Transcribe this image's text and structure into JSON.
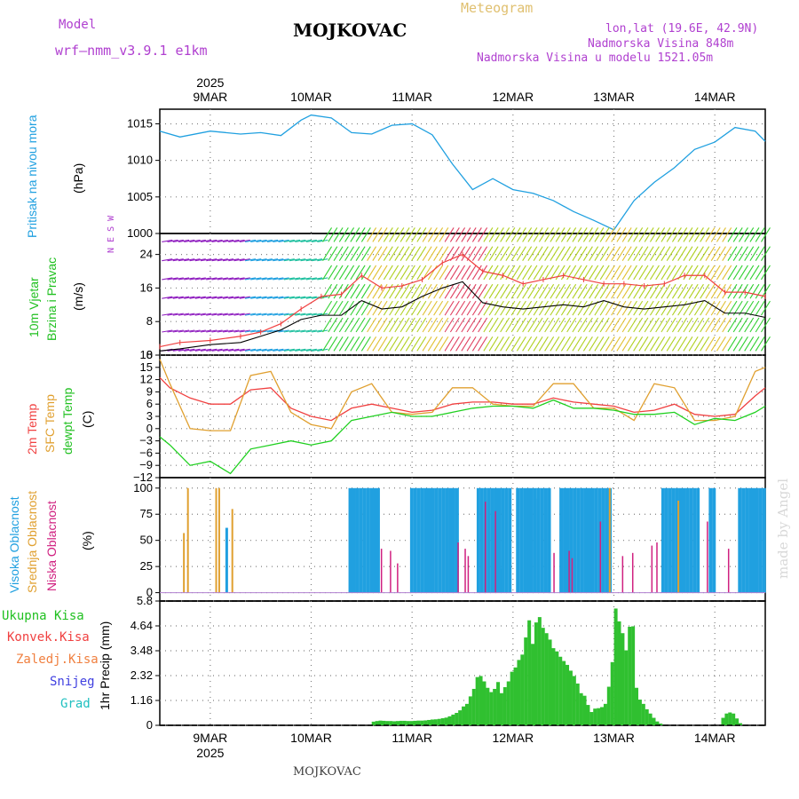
{
  "header": {
    "model_label": "Model",
    "model_name": "wrf—nmm_v3.9.1 e1km",
    "title": "MOJKOVAC",
    "meteogram": "Meteogram",
    "lonlat": "lon,lat (19.6E, 42.9N)",
    "altitude": "Nadmorska Visina 848m",
    "altitude_model": "Nadmorska Visina u modelu 1521.05m",
    "footer": "MOJKOVAC",
    "watermark": "made by Angel"
  },
  "colors": {
    "pressure": "#20a0e0",
    "wind_labels": "#20c020",
    "temp2m": "#f04040",
    "sfc": "#e0a030",
    "dewpt": "#20d020",
    "high_cloud": "#20a0e0",
    "mid_cloud": "#e0a030",
    "low_cloud": "#d02080",
    "precip": "#30c030",
    "grid": "#808080"
  },
  "time_axis": {
    "year": "2025",
    "days": [
      "9MAR",
      "10MAR",
      "11MAR",
      "12MAR",
      "13MAR",
      "14MAR"
    ]
  },
  "chart_data": [
    {
      "type": "line",
      "panel": "pressure",
      "ylabel": "Pritisak na nivou mora",
      "unit": "(hPa)",
      "ylim": [
        1000,
        1017
      ],
      "yticks": [
        "1015",
        "1010",
        "1005",
        "1000"
      ],
      "x_days": [
        8.5,
        8.7,
        9.0,
        9.3,
        9.5,
        9.7,
        9.9,
        10.0,
        10.2,
        10.4,
        10.6,
        10.8,
        11.0,
        11.2,
        11.4,
        11.6,
        11.8,
        12.0,
        12.2,
        12.4,
        12.6,
        12.8,
        13.0,
        13.2,
        13.4,
        13.6,
        13.8,
        14.0,
        14.2,
        14.4,
        14.5
      ],
      "values": [
        1014,
        1013.2,
        1014,
        1013.6,
        1013.8,
        1013.4,
        1015.5,
        1016.2,
        1015.8,
        1013.8,
        1013.6,
        1014.8,
        1015,
        1013.5,
        1009.5,
        1006,
        1007.5,
        1006,
        1005.5,
        1004.5,
        1003,
        1001.8,
        1000.5,
        1004.5,
        1007,
        1009,
        1011.5,
        1012.5,
        1014.5,
        1014,
        1012.6
      ],
      "grid": true
    },
    {
      "type": "line",
      "panel": "wind",
      "ylabel": "10m Vjetar Brzina i Pravac",
      "unit": "(m/s)",
      "ylim": [
        0,
        29
      ],
      "yticks": [
        "24",
        "16",
        "8",
        "0"
      ],
      "compass": "N E S W",
      "series": [
        {
          "x_days": [
            8.5,
            8.7,
            9.0,
            9.3,
            9.5,
            9.7,
            9.9,
            10.1,
            10.3,
            10.5,
            10.7,
            10.9,
            11.1,
            11.3,
            11.5,
            11.7,
            11.9,
            12.1,
            12.3,
            12.5,
            12.7,
            12.9,
            13.1,
            13.3,
            13.5,
            13.7,
            13.9,
            14.1,
            14.3,
            14.5
          ],
          "values": [
            1,
            1.5,
            2.5,
            3,
            4.5,
            6,
            8.5,
            9.5,
            9.5,
            13,
            11,
            11.5,
            14,
            16,
            17.5,
            12.5,
            11.5,
            11,
            11.5,
            12,
            11.5,
            13,
            11.5,
            11,
            11.5,
            12,
            13,
            10,
            10,
            9
          ]
        },
        {
          "x_days": [
            8.5,
            8.7,
            9.0,
            9.3,
            9.5,
            9.7,
            9.9,
            10.1,
            10.3,
            10.5,
            10.7,
            10.9,
            11.1,
            11.3,
            11.5,
            11.7,
            11.9,
            12.1,
            12.3,
            12.5,
            12.7,
            12.9,
            13.1,
            13.3,
            13.5,
            13.7,
            13.9,
            14.1,
            14.3,
            14.5
          ],
          "values": [
            2,
            3,
            3.5,
            4.5,
            5.5,
            7.5,
            11,
            14,
            14.5,
            19,
            16,
            16.5,
            18,
            22,
            24,
            20,
            19,
            17,
            18,
            19,
            18,
            17,
            17,
            16.5,
            17,
            19,
            19,
            15,
            15,
            14
          ]
        }
      ],
      "grid": true
    },
    {
      "type": "line",
      "panel": "temperature",
      "ylabel": "2m Temp / SFC Temp / dewpt Temp",
      "unit": "(C)",
      "ylim": [
        -12,
        18
      ],
      "yticks": [
        "18",
        "15",
        "12",
        "9",
        "6",
        "3",
        "0",
        "−3",
        "−6",
        "−9",
        "−12"
      ],
      "series": [
        {
          "name": "2m Temp",
          "x_days": [
            8.5,
            8.6,
            8.8,
            9.0,
            9.2,
            9.4,
            9.6,
            9.8,
            10.0,
            10.2,
            10.4,
            10.6,
            10.8,
            11.0,
            11.2,
            11.4,
            11.6,
            11.8,
            12.0,
            12.2,
            12.4,
            12.6,
            12.8,
            13.0,
            13.2,
            13.4,
            13.6,
            13.8,
            14.0,
            14.2,
            14.4,
            14.5
          ],
          "values": [
            12.5,
            10,
            7.5,
            6,
            6,
            9.5,
            10,
            5,
            3,
            2,
            5,
            6,
            5,
            4,
            4.5,
            6,
            6.5,
            6.5,
            6,
            6,
            7.5,
            6.5,
            6,
            5.5,
            4,
            4.5,
            6,
            3.5,
            3,
            3.5,
            8,
            10
          ]
        },
        {
          "name": "SFC Temp",
          "x_days": [
            8.5,
            8.6,
            8.8,
            9.0,
            9.2,
            9.4,
            9.6,
            9.8,
            10.0,
            10.2,
            10.4,
            10.6,
            10.8,
            11.0,
            11.2,
            11.4,
            11.6,
            11.8,
            12.0,
            12.2,
            12.4,
            12.6,
            12.8,
            13.0,
            13.2,
            13.4,
            13.6,
            13.8,
            14.0,
            14.2,
            14.4,
            14.5
          ],
          "values": [
            17,
            11,
            0,
            -0.5,
            -0.5,
            13,
            14,
            4,
            1,
            0,
            9,
            11,
            4,
            3.5,
            4,
            10,
            10,
            6,
            5.5,
            5.5,
            11,
            11,
            5,
            5,
            2,
            11,
            10,
            2,
            2,
            3,
            14,
            15
          ]
        },
        {
          "name": "dewpt Temp",
          "x_days": [
            8.5,
            8.6,
            8.8,
            9.0,
            9.2,
            9.4,
            9.6,
            9.8,
            10.0,
            10.2,
            10.4,
            10.6,
            10.8,
            11.0,
            11.2,
            11.4,
            11.6,
            11.8,
            12.0,
            12.2,
            12.4,
            12.6,
            12.8,
            13.0,
            13.2,
            13.4,
            13.6,
            13.8,
            14.0,
            14.2,
            14.4,
            14.5
          ],
          "values": [
            -2,
            -4,
            -9,
            -8,
            -11,
            -5,
            -4,
            -3,
            -4,
            -3,
            2,
            3,
            4,
            3,
            3,
            4,
            5,
            5.5,
            5.5,
            5,
            7,
            5,
            5,
            4.5,
            3.5,
            3.5,
            4,
            1,
            2.5,
            2,
            4,
            5.5
          ]
        }
      ],
      "grid": true
    },
    {
      "type": "bar",
      "panel": "cloud",
      "ylabel": "Visoka Oblacnost / Srednja Oblacnost / Niska Oblacnost",
      "unit": "(%)",
      "ylim": [
        0,
        100
      ],
      "yticks": [
        "100",
        "75",
        "50",
        "25",
        "0"
      ],
      "high_blocks_days": [
        [
          10.37,
          10.67
        ],
        [
          10.98,
          11.44
        ],
        [
          11.64,
          11.97
        ],
        [
          12.03,
          12.36
        ],
        [
          12.46,
          12.95
        ],
        [
          13.47,
          13.82
        ],
        [
          13.94,
          14.0
        ],
        [
          14.23,
          14.5
        ]
      ],
      "high_spikes": [
        {
          "x": 9.15,
          "v": 62
        },
        {
          "x": 12.21,
          "v": 90
        },
        {
          "x": 11.87,
          "v": 23
        }
      ],
      "mid_spikes": [
        {
          "x": 8.73,
          "v": 57
        },
        {
          "x": 8.77,
          "v": 100
        },
        {
          "x": 9.05,
          "v": 100
        },
        {
          "x": 9.08,
          "v": 100
        },
        {
          "x": 9.21,
          "v": 80
        },
        {
          "x": 12.95,
          "v": 100
        },
        {
          "x": 13.63,
          "v": 88
        }
      ],
      "low_spikes": [
        {
          "x": 10.69,
          "v": 42
        },
        {
          "x": 10.78,
          "v": 40
        },
        {
          "x": 10.85,
          "v": 28
        },
        {
          "x": 11.45,
          "v": 48
        },
        {
          "x": 11.52,
          "v": 42
        },
        {
          "x": 11.55,
          "v": 35
        },
        {
          "x": 11.72,
          "v": 87
        },
        {
          "x": 11.82,
          "v": 78
        },
        {
          "x": 12.4,
          "v": 38
        },
        {
          "x": 12.55,
          "v": 40
        },
        {
          "x": 12.58,
          "v": 33
        },
        {
          "x": 12.86,
          "v": 68
        },
        {
          "x": 13.08,
          "v": 35
        },
        {
          "x": 13.18,
          "v": 38
        },
        {
          "x": 13.37,
          "v": 45
        },
        {
          "x": 13.42,
          "v": 48
        },
        {
          "x": 13.92,
          "v": 68
        },
        {
          "x": 14.13,
          "v": 42
        }
      ],
      "grid": true
    },
    {
      "type": "bar",
      "panel": "precip",
      "ylabel": "1hr Precip (mm)",
      "legend": [
        "Ukupna Kisa",
        "Konvek.Kisa",
        "Zaledj.Kisa",
        "Snijeg",
        "Grad"
      ],
      "ylim": [
        0,
        5.8
      ],
      "yticks": [
        "5.8",
        "4.64",
        "3.48",
        "2.32",
        "1.16",
        "0"
      ],
      "start_day": 10.6,
      "step_day": 0.0343,
      "values": [
        0.17,
        0.2,
        0.22,
        0.21,
        0.2,
        0.2,
        0.19,
        0.2,
        0.21,
        0.21,
        0.2,
        0.2,
        0.21,
        0.22,
        0.22,
        0.23,
        0.25,
        0.27,
        0.28,
        0.3,
        0.33,
        0.36,
        0.42,
        0.5,
        0.58,
        0.7,
        0.88,
        1.0,
        1.35,
        1.7,
        2.25,
        2.3,
        2.05,
        1.75,
        1.55,
        1.7,
        2.02,
        1.5,
        1.78,
        2.05,
        2.5,
        2.7,
        3.05,
        3.3,
        4.1,
        4.9,
        3.8,
        4.8,
        5.05,
        4.55,
        4.3,
        4.0,
        3.6,
        3.45,
        3.2,
        3.0,
        2.82,
        2.55,
        2.3,
        1.95,
        1.5,
        1.38,
        0.95,
        0.62,
        0.78,
        0.8,
        0.85,
        1.0,
        1.8,
        2.95,
        5.45,
        4.85,
        4.3,
        3.5,
        4.6,
        4.62,
        1.75,
        1.2,
        1.0,
        0.75,
        0.55,
        0.35,
        0.18,
        0.08,
        0,
        0,
        0,
        0,
        0,
        0,
        0,
        0,
        0,
        0,
        0,
        0,
        0,
        0,
        0,
        0,
        0,
        0.35,
        0.55,
        0.6,
        0.55,
        0.32,
        0.1
      ],
      "grid": true
    }
  ]
}
